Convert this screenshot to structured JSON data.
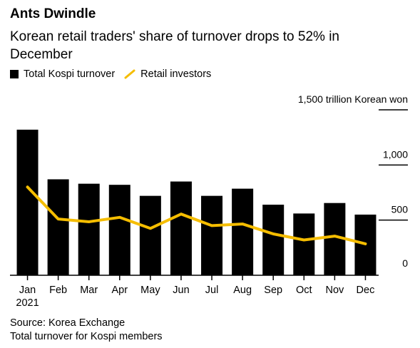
{
  "title": "Ants Dwindle",
  "subtitle": "Korean retail traders' share of turnover drops to 52% in December",
  "legend": {
    "bars_label": "Total Kospi turnover",
    "line_label": "Retail investors"
  },
  "footer": {
    "source": "Source: Korea Exchange",
    "note": "Total turnover for Kospi members"
  },
  "colors": {
    "bars": "#000000",
    "line": "#f5bd00",
    "axis": "#000000"
  },
  "chart_data": {
    "type": "bar",
    "categories": [
      "Jan",
      "Feb",
      "Mar",
      "Apr",
      "May",
      "Jun",
      "Jul",
      "Aug",
      "Sep",
      "Oct",
      "Nov",
      "Dec"
    ],
    "year_label": "2021",
    "series": [
      {
        "name": "Total Kospi turnover",
        "type": "bar",
        "values": [
          1320,
          870,
          830,
          820,
          720,
          850,
          720,
          785,
          640,
          560,
          655,
          550
        ]
      },
      {
        "name": "Retail investors",
        "type": "line",
        "values": [
          800,
          510,
          485,
          525,
          425,
          555,
          450,
          465,
          375,
          320,
          355,
          285
        ]
      }
    ],
    "ylabel": "1,500 trillion Korean won",
    "ylim": [
      0,
      1500
    ],
    "yticks": [
      0,
      500,
      1000,
      1500
    ],
    "ytick_labels": [
      "0",
      "500",
      "1,000",
      "1,500 trillion Korean won"
    ],
    "y_axis_position": "right",
    "grid": false
  }
}
